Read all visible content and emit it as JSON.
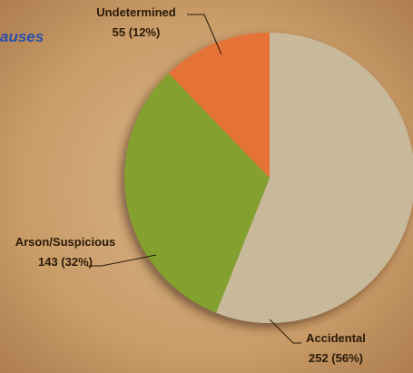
{
  "chart_data": {
    "type": "pie",
    "title": "auses",
    "categories": [
      "Accidental",
      "Arson/Suspicious",
      "Undetermined"
    ],
    "values": [
      252,
      143,
      55
    ],
    "value_labels": [
      "252 (56%)",
      "143 (32%)",
      "55 (12%)"
    ],
    "colors": [
      "#c9b99b",
      "#84a02f",
      "#e57337"
    ]
  }
}
